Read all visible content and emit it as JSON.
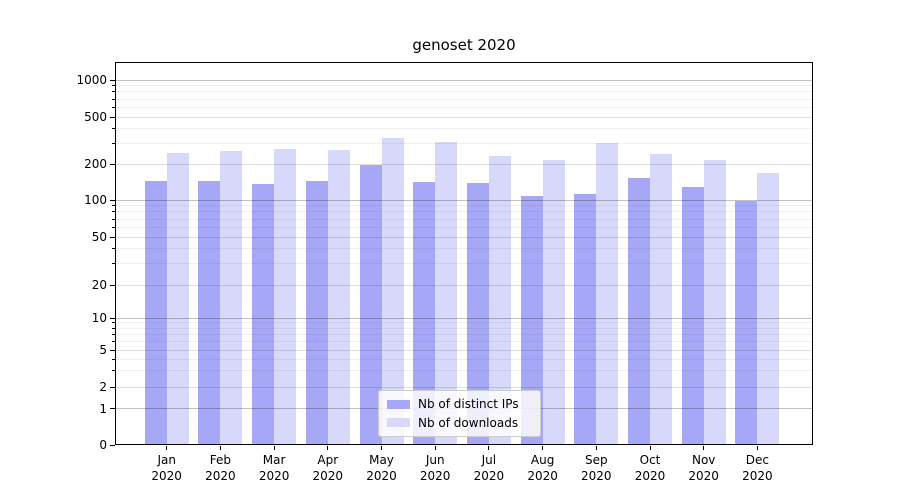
{
  "chart_data": {
    "type": "bar",
    "title": "genoset 2020",
    "y_scale": "symlog",
    "ylim": [
      0,
      1400
    ],
    "grid": "horizontal",
    "legend_position": "bottom-center",
    "background_color": "#ffffff",
    "x_tick_labels": [
      [
        "Jan",
        "2020"
      ],
      [
        "Feb",
        "2020"
      ],
      [
        "Mar",
        "2020"
      ],
      [
        "Apr",
        "2020"
      ],
      [
        "May",
        "2020"
      ],
      [
        "Jun",
        "2020"
      ],
      [
        "Jul",
        "2020"
      ],
      [
        "Aug",
        "2020"
      ],
      [
        "Sep",
        "2020"
      ],
      [
        "Oct",
        "2020"
      ],
      [
        "Nov",
        "2020"
      ],
      [
        "Dec",
        "2020"
      ]
    ],
    "y_tick_labels": [
      "1000",
      "500",
      "200",
      "100",
      "50",
      "20",
      "10",
      "5",
      "2",
      "1",
      "0"
    ],
    "series": [
      {
        "name": "Nb of distinct IPs",
        "color": "#a7a7f7",
        "values": [
          143,
          144,
          137,
          145,
          195,
          141,
          139,
          108,
          112,
          152,
          128,
          98
        ]
      },
      {
        "name": "Nb of downloads",
        "color": "#d8d8fa",
        "values": [
          250,
          257,
          266,
          261,
          332,
          306,
          233,
          215,
          302,
          242,
          215,
          167
        ]
      }
    ]
  }
}
